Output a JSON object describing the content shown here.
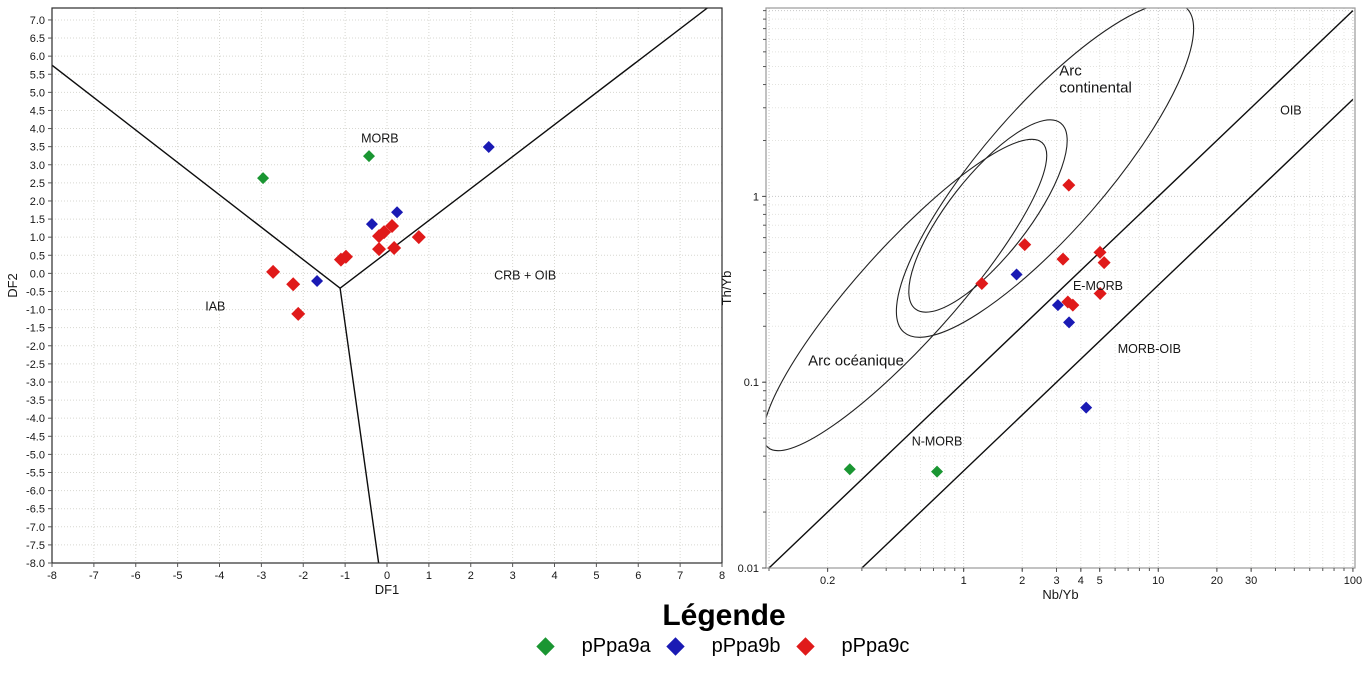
{
  "page": {
    "background": "#ffffff"
  },
  "palette": {
    "green": "#1a9632",
    "blue": "#1a1ab4",
    "red": "#e01a1a"
  },
  "legend": {
    "title": "Légende",
    "items": [
      {
        "label": "pPpa9a",
        "color": "#1a9632"
      },
      {
        "label": "pPpa9b",
        "color": "#1a1ab4"
      },
      {
        "label": "pPpa9c",
        "color": "#e01a1a"
      }
    ]
  },
  "chart_data": [
    {
      "name": "discrimination-DF1-DF2",
      "type": "scatter",
      "xlabel": "DF1",
      "ylabel": "DF2",
      "xlim": [
        -8,
        8
      ],
      "ylim": [
        -8,
        7.33
      ],
      "grid": true,
      "xticks": [
        [
          -8,
          "-8"
        ],
        [
          -7,
          "-7"
        ],
        [
          -6,
          "-6"
        ],
        [
          -5,
          "-5"
        ],
        [
          -4,
          "-4"
        ],
        [
          -3,
          "-3"
        ],
        [
          -2,
          "-2"
        ],
        [
          -1,
          "-1"
        ],
        [
          0,
          "0"
        ],
        [
          1,
          "1"
        ],
        [
          2,
          "2"
        ],
        [
          3,
          "3"
        ],
        [
          4,
          "4"
        ],
        [
          5,
          "5"
        ],
        [
          6,
          "6"
        ],
        [
          7,
          "7"
        ],
        [
          8,
          "8"
        ]
      ],
      "yticks": [
        [
          7,
          "7.0"
        ],
        [
          6.5,
          "6.5"
        ],
        [
          6,
          "6.0"
        ],
        [
          5.5,
          "5.5"
        ],
        [
          5,
          "5.0"
        ],
        [
          4.5,
          "4.5"
        ],
        [
          4,
          "4.0"
        ],
        [
          3.5,
          "3.5"
        ],
        [
          3,
          "3.0"
        ],
        [
          2.5,
          "2.5"
        ],
        [
          2,
          "2.0"
        ],
        [
          1.5,
          "1.5"
        ],
        [
          1,
          "1.0"
        ],
        [
          0.5,
          "0.5"
        ],
        [
          0,
          "0.0"
        ],
        [
          -0.5,
          "-0.5"
        ],
        [
          -1,
          "-1.0"
        ],
        [
          -1.5,
          "-1.5"
        ],
        [
          -2,
          "-2.0"
        ],
        [
          -2.5,
          "-2.5"
        ],
        [
          -3,
          "-3.0"
        ],
        [
          -3.5,
          "-3.5"
        ],
        [
          -4,
          "-4.0"
        ],
        [
          -4.5,
          "-4.5"
        ],
        [
          -5,
          "-5.0"
        ],
        [
          -5.5,
          "-5.5"
        ],
        [
          -6,
          "-6.0"
        ],
        [
          -6.5,
          "-6.5"
        ],
        [
          -7,
          "-7.0"
        ],
        [
          -7.5,
          "-7.5"
        ],
        [
          -8,
          "-8.0"
        ]
      ],
      "region_labels": [
        {
          "text": "MORB",
          "x": -0.17,
          "y": 3.73,
          "size": 12.5
        },
        {
          "text": "IAB",
          "x": -4.1,
          "y": -0.91,
          "size": 12.5
        },
        {
          "text": "CRB + OIB",
          "x": 3.3,
          "y": -0.06,
          "size": 12.5
        }
      ],
      "boundary_lines": [
        [
          [
            -8,
            5.75
          ],
          [
            -1.12,
            -0.41
          ]
        ],
        [
          [
            -1.12,
            -0.41
          ],
          [
            7.65,
            7.33
          ]
        ],
        [
          [
            -1.12,
            -0.41
          ],
          [
            -0.2,
            -8
          ]
        ]
      ],
      "series": [
        {
          "name": "pPpa9a",
          "color": "#1a9632",
          "size": 12,
          "points": [
            [
              -2.96,
              2.63
            ],
            [
              -0.43,
              3.24
            ]
          ]
        },
        {
          "name": "pPpa9b",
          "color": "#1a1ab4",
          "size": 12,
          "points": [
            [
              2.43,
              3.49
            ],
            [
              0.24,
              1.69
            ],
            [
              -0.36,
              1.36
            ],
            [
              -1.67,
              -0.21
            ]
          ]
        },
        {
          "name": "pPpa9c",
          "color": "#e01a1a",
          "size": 14,
          "points": [
            [
              -2.72,
              0.04
            ],
            [
              -2.24,
              -0.3
            ],
            [
              -2.12,
              -1.12
            ],
            [
              -1.1,
              0.38
            ],
            [
              -0.98,
              0.46
            ],
            [
              -0.07,
              1.14
            ],
            [
              0.12,
              1.31
            ],
            [
              -0.19,
              1.03
            ],
            [
              0.76,
              1.0
            ],
            [
              -0.19,
              0.67
            ],
            [
              0.17,
              0.7
            ]
          ]
        }
      ]
    },
    {
      "name": "pearce-NbYb-ThYb",
      "type": "scatter",
      "xscale": "log",
      "yscale": "log",
      "xlabel": "Nb/Yb",
      "ylabel": "Th/Yb",
      "xlim": [
        0.0965,
        102.5
      ],
      "ylim": [
        0.01,
        10.33
      ],
      "grid": true,
      "xticks": [
        [
          0.2,
          "0.2"
        ],
        [
          1,
          "1"
        ],
        [
          2,
          "2"
        ],
        [
          3,
          "3"
        ],
        [
          4,
          "4"
        ],
        [
          5,
          "5"
        ],
        [
          10,
          "10"
        ],
        [
          20,
          "20"
        ],
        [
          30,
          "30"
        ],
        [
          100,
          "100"
        ]
      ],
      "yticks": [
        [
          1,
          "1"
        ],
        [
          0.1,
          "0.1"
        ],
        [
          0.01,
          "0.01"
        ]
      ],
      "region_labels": [
        {
          "text": "Arc\ncontinental",
          "x": 3.1,
          "y": 4.7,
          "size": 15,
          "align": "start"
        },
        {
          "text": "Arc océanique",
          "x": 0.28,
          "y": 0.129,
          "size": 15
        },
        {
          "text": "OIB",
          "x": 48,
          "y": 2.9,
          "size": 12.5
        },
        {
          "text": "E-MORB",
          "x": 4.9,
          "y": 0.33,
          "size": 12.5
        },
        {
          "text": "MORB-OIB",
          "x": 9.0,
          "y": 0.151,
          "size": 12.5
        },
        {
          "text": "N-MORB",
          "x": 0.73,
          "y": 0.048,
          "size": 12.5
        }
      ],
      "boundary_lines": [
        [
          [
            0.1,
            0.01
          ],
          [
            100,
            10
          ]
        ],
        [
          [
            0.3,
            0.01
          ],
          [
            100,
            3.33
          ]
        ]
      ],
      "ellipses": [
        {
          "name": "arc-continental-outer",
          "cx": 1045,
          "cy": 170,
          "rx": 215,
          "ry": 62,
          "rotate": -49
        },
        {
          "name": "arc-continental-inner",
          "cx": 988,
          "cy": 216,
          "rx": 118,
          "ry": 40,
          "rotate": -52
        },
        {
          "name": "arc-oceanique",
          "cx": 905,
          "cy": 295,
          "rx": 205,
          "ry": 48,
          "rotate": -48
        }
      ],
      "series": [
        {
          "name": "pPpa9a",
          "color": "#1a9632",
          "size": 12,
          "points": [
            [
              0.26,
              0.034
            ],
            [
              0.73,
              0.033
            ]
          ]
        },
        {
          "name": "pPpa9b",
          "color": "#1a1ab4",
          "size": 12,
          "points": [
            [
              1.87,
              0.38
            ],
            [
              3.05,
              0.26
            ],
            [
              3.48,
              0.21
            ],
            [
              4.26,
              0.073
            ]
          ]
        },
        {
          "name": "pPpa9c",
          "color": "#e01a1a",
          "size": 13,
          "points": [
            [
              3.47,
              1.15
            ],
            [
              2.06,
              0.55
            ],
            [
              3.24,
              0.46
            ],
            [
              5.02,
              0.5
            ],
            [
              5.27,
              0.44
            ],
            [
              1.24,
              0.34
            ],
            [
              5.03,
              0.3
            ],
            [
              3.43,
              0.27
            ],
            [
              3.64,
              0.26
            ]
          ]
        }
      ]
    }
  ]
}
